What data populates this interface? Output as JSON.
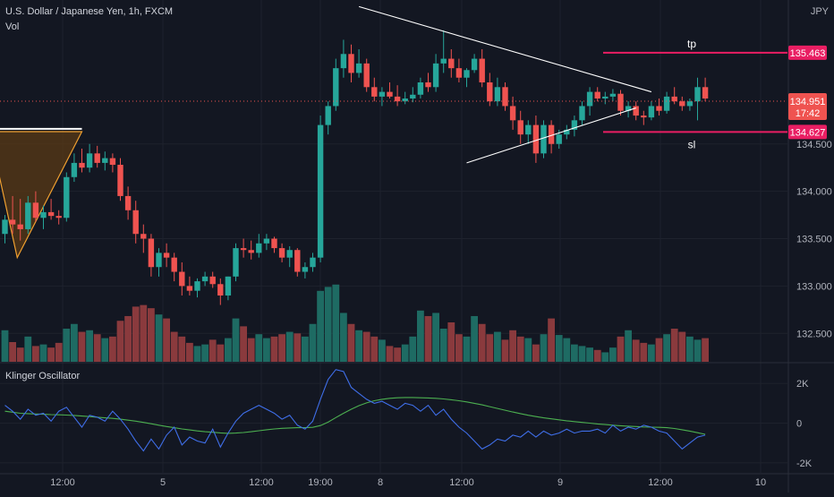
{
  "header": {
    "symbol_line": "U.S. Dollar / Japanese Yen, 1h, FXCM",
    "volume_label": "Vol",
    "currency": "JPY"
  },
  "indicator": {
    "name": "Klinger Oscillator"
  },
  "colors": {
    "background": "#131722",
    "up": "#26a69a",
    "down": "#ef5350",
    "up_volume": "#1e6b63",
    "down_volume": "#8a3a3d",
    "level_line": "#e91e63",
    "trendline": "#ffffff",
    "triangle_fill": "#5a3a16",
    "triangle_stroke": "#f0a030",
    "klinger_line": "#3f6ee8",
    "signal_line": "#4caf50",
    "text": "#d1d4dc",
    "axis_text": "#b2b5be"
  },
  "chart_data": {
    "type": "candlestick",
    "symbol": "USDJPY",
    "timeframe": "1h",
    "y_range": [
      132.2,
      136.02
    ],
    "y_ticks": [
      "134.500",
      "134.000",
      "133.500",
      "133.000",
      "132.500"
    ],
    "x_ticks": [
      "12:00",
      "5",
      "12:00",
      "19:00",
      "8",
      "12:00",
      "9",
      "12:00",
      "10"
    ],
    "candles": [
      [
        133.55,
        133.75,
        133.45,
        133.7
      ],
      [
        133.7,
        133.95,
        133.55,
        133.65
      ],
      [
        133.65,
        133.92,
        133.48,
        133.6
      ],
      [
        133.6,
        133.95,
        133.55,
        133.88
      ],
      [
        133.88,
        134.0,
        133.68,
        133.72
      ],
      [
        133.72,
        133.85,
        133.6,
        133.78
      ],
      [
        133.78,
        133.92,
        133.7,
        133.74
      ],
      [
        133.74,
        133.8,
        133.65,
        133.72
      ],
      [
        133.72,
        134.2,
        133.68,
        134.15
      ],
      [
        134.15,
        134.4,
        134.1,
        134.3
      ],
      [
        134.3,
        134.45,
        134.2,
        134.25
      ],
      [
        134.25,
        134.5,
        134.2,
        134.4
      ],
      [
        134.4,
        134.48,
        134.25,
        134.3
      ],
      [
        134.3,
        134.42,
        134.22,
        134.35
      ],
      [
        134.35,
        134.4,
        134.2,
        134.28
      ],
      [
        134.28,
        134.35,
        133.9,
        133.95
      ],
      [
        133.95,
        134.05,
        133.7,
        133.8
      ],
      [
        133.8,
        133.9,
        133.45,
        133.55
      ],
      [
        133.55,
        133.65,
        133.35,
        133.5
      ],
      [
        133.5,
        133.55,
        133.1,
        133.2
      ],
      [
        133.2,
        133.4,
        133.1,
        133.35
      ],
      [
        133.35,
        133.45,
        133.2,
        133.3
      ],
      [
        133.3,
        133.35,
        133.05,
        133.15
      ],
      [
        133.15,
        133.25,
        132.9,
        133.0
      ],
      [
        133.0,
        133.1,
        132.9,
        132.95
      ],
      [
        132.95,
        133.08,
        132.88,
        133.05
      ],
      [
        133.05,
        133.15,
        133.0,
        133.1
      ],
      [
        133.1,
        133.15,
        132.98,
        133.02
      ],
      [
        133.02,
        133.08,
        132.8,
        132.9
      ],
      [
        132.9,
        133.1,
        132.85,
        133.1
      ],
      [
        133.1,
        133.45,
        133.05,
        133.4
      ],
      [
        133.4,
        133.5,
        133.3,
        133.38
      ],
      [
        133.38,
        133.48,
        133.28,
        133.35
      ],
      [
        133.35,
        133.55,
        133.3,
        133.45
      ],
      [
        133.45,
        133.55,
        133.38,
        133.5
      ],
      [
        133.5,
        133.52,
        133.35,
        133.4
      ],
      [
        133.4,
        133.45,
        133.25,
        133.3
      ],
      [
        133.3,
        133.42,
        133.2,
        133.38
      ],
      [
        133.38,
        133.4,
        133.1,
        133.15
      ],
      [
        133.15,
        133.25,
        133.08,
        133.2
      ],
      [
        133.2,
        133.35,
        133.15,
        133.3
      ],
      [
        133.3,
        134.8,
        133.25,
        134.7
      ],
      [
        134.7,
        134.95,
        134.6,
        134.9
      ],
      [
        134.9,
        135.4,
        134.85,
        135.3
      ],
      [
        135.3,
        135.6,
        135.2,
        135.45
      ],
      [
        135.45,
        135.55,
        135.15,
        135.25
      ],
      [
        135.25,
        135.5,
        135.2,
        135.35
      ],
      [
        135.35,
        135.4,
        135.05,
        135.1
      ],
      [
        135.1,
        135.2,
        134.95,
        135.0
      ],
      [
        135.0,
        135.1,
        134.9,
        135.05
      ],
      [
        135.05,
        135.15,
        134.98,
        135.0
      ],
      [
        135.0,
        135.12,
        134.9,
        134.95
      ],
      [
        134.95,
        135.05,
        134.92,
        134.98
      ],
      [
        134.98,
        135.1,
        134.94,
        135.02
      ],
      [
        135.02,
        135.2,
        134.98,
        135.15
      ],
      [
        135.15,
        135.25,
        135.05,
        135.1
      ],
      [
        135.1,
        135.45,
        135.05,
        135.35
      ],
      [
        135.35,
        135.7,
        135.25,
        135.4
      ],
      [
        135.4,
        135.5,
        135.2,
        135.3
      ],
      [
        135.3,
        135.4,
        135.15,
        135.2
      ],
      [
        135.2,
        135.3,
        135.1,
        135.28
      ],
      [
        135.28,
        135.45,
        135.25,
        135.4
      ],
      [
        135.4,
        135.5,
        135.1,
        135.15
      ],
      [
        135.15,
        135.25,
        134.9,
        134.95
      ],
      [
        134.95,
        135.2,
        134.9,
        135.1
      ],
      [
        135.1,
        135.15,
        134.85,
        134.9
      ],
      [
        134.9,
        135.0,
        134.65,
        134.75
      ],
      [
        134.75,
        134.85,
        134.5,
        134.6
      ],
      [
        134.6,
        134.75,
        134.5,
        134.7
      ],
      [
        134.7,
        134.8,
        134.3,
        134.4
      ],
      [
        134.4,
        134.75,
        134.35,
        134.7
      ],
      [
        134.7,
        134.75,
        134.4,
        134.5
      ],
      [
        134.5,
        134.65,
        134.45,
        134.6
      ],
      [
        134.6,
        134.7,
        134.55,
        134.65
      ],
      [
        134.65,
        134.8,
        134.58,
        134.75
      ],
      [
        134.75,
        134.95,
        134.7,
        134.9
      ],
      [
        134.9,
        135.1,
        134.8,
        135.05
      ],
      [
        135.05,
        135.1,
        134.95,
        134.98
      ],
      [
        134.98,
        135.05,
        134.92,
        135.0
      ],
      [
        135.0,
        135.08,
        134.95,
        135.03
      ],
      [
        135.03,
        135.07,
        134.8,
        134.85
      ],
      [
        134.85,
        134.95,
        134.78,
        134.9
      ],
      [
        134.9,
        134.95,
        134.75,
        134.8
      ],
      [
        134.8,
        134.85,
        134.7,
        134.78
      ],
      [
        134.78,
        134.95,
        134.75,
        134.9
      ],
      [
        134.9,
        134.98,
        134.8,
        134.85
      ],
      [
        134.85,
        135.05,
        134.82,
        135.0
      ],
      [
        135.0,
        135.1,
        134.92,
        134.95
      ],
      [
        134.95,
        135.0,
        134.85,
        134.9
      ],
      [
        134.9,
        134.98,
        134.85,
        134.95
      ],
      [
        134.95,
        135.2,
        134.75,
        135.1
      ],
      [
        135.1,
        135.2,
        134.95,
        134.98
      ]
    ],
    "volume": [
      0.4,
      0.25,
      0.18,
      0.32,
      0.2,
      0.22,
      0.18,
      0.24,
      0.42,
      0.48,
      0.38,
      0.4,
      0.35,
      0.3,
      0.32,
      0.52,
      0.58,
      0.7,
      0.72,
      0.68,
      0.6,
      0.55,
      0.38,
      0.32,
      0.24,
      0.2,
      0.22,
      0.28,
      0.22,
      0.3,
      0.55,
      0.45,
      0.3,
      0.35,
      0.3,
      0.32,
      0.35,
      0.38,
      0.36,
      0.32,
      0.48,
      0.9,
      0.95,
      0.98,
      0.62,
      0.48,
      0.4,
      0.38,
      0.32,
      0.28,
      0.2,
      0.18,
      0.22,
      0.32,
      0.65,
      0.58,
      0.62,
      0.42,
      0.5,
      0.35,
      0.32,
      0.58,
      0.48,
      0.35,
      0.38,
      0.28,
      0.4,
      0.32,
      0.3,
      0.22,
      0.35,
      0.55,
      0.34,
      0.3,
      0.22,
      0.2,
      0.18,
      0.15,
      0.12,
      0.18,
      0.32,
      0.4,
      0.28,
      0.24,
      0.22,
      0.3,
      0.35,
      0.42,
      0.38,
      0.32,
      0.28,
      0.3
    ],
    "levels": [
      {
        "label": "tp",
        "price": 135.463,
        "price_text": "135.463"
      },
      {
        "label": "sl",
        "price": 134.627,
        "price_text": "134.627"
      }
    ],
    "current": {
      "price_text": "134.951",
      "countdown": "17:42",
      "price": 134.951
    },
    "trendlines": [
      {
        "from": [
          46,
          135.95
        ],
        "to": [
          84,
          135.05
        ]
      },
      {
        "from": [
          60,
          134.3
        ],
        "to": [
          82,
          134.88
        ]
      }
    ],
    "triangle": [
      [
        -2,
        134.63
      ],
      [
        10,
        134.63
      ],
      [
        1.6,
        133.3
      ]
    ],
    "triangle_cap": [
      [
        -1,
        134.66
      ],
      [
        10,
        134.66
      ]
    ],
    "klinger": {
      "y_ticks": [
        "2K",
        "0",
        "-2K"
      ],
      "y_range": [
        -2500,
        3000
      ],
      "kvo": [
        900,
        600,
        200,
        700,
        400,
        500,
        100,
        600,
        800,
        300,
        -200,
        400,
        300,
        100,
        600,
        200,
        -300,
        -900,
        -1400,
        -800,
        -1300,
        -600,
        -200,
        -1100,
        -700,
        -900,
        -1000,
        -300,
        -1200,
        -500,
        100,
        500,
        700,
        900,
        700,
        500,
        200,
        400,
        -100,
        -300,
        100,
        1200,
        2200,
        2700,
        2600,
        1800,
        1500,
        1200,
        1000,
        1100,
        900,
        700,
        1000,
        900,
        600,
        900,
        400,
        700,
        200,
        -200,
        -500,
        -900,
        -1300,
        -1100,
        -800,
        -900,
        -600,
        -700,
        -400,
        -700,
        -400,
        -600,
        -500,
        -300,
        -500,
        -400,
        -400,
        -300,
        -500,
        -100,
        -400,
        -200,
        -300,
        -100,
        -200,
        -400,
        -500,
        -900,
        -1300,
        -1000,
        -700,
        -600
      ],
      "signal": [
        600,
        550,
        500,
        480,
        460,
        450,
        430,
        420,
        410,
        390,
        360,
        330,
        300,
        270,
        240,
        200,
        150,
        100,
        40,
        -30,
        -100,
        -170,
        -230,
        -290,
        -340,
        -390,
        -430,
        -460,
        -490,
        -510,
        -500,
        -470,
        -430,
        -380,
        -330,
        -290,
        -260,
        -240,
        -230,
        -230,
        -210,
        -120,
        50,
        280,
        500,
        700,
        880,
        1020,
        1130,
        1200,
        1250,
        1280,
        1290,
        1290,
        1280,
        1270,
        1250,
        1220,
        1180,
        1130,
        1070,
        1000,
        920,
        830,
        740,
        650,
        560,
        480,
        400,
        330,
        270,
        220,
        170,
        120,
        80,
        40,
        0,
        -40,
        -70,
        -100,
        -130,
        -150,
        -170,
        -190,
        -200,
        -210,
        -230,
        -270,
        -330,
        -400,
        -480,
        -560
      ]
    }
  }
}
